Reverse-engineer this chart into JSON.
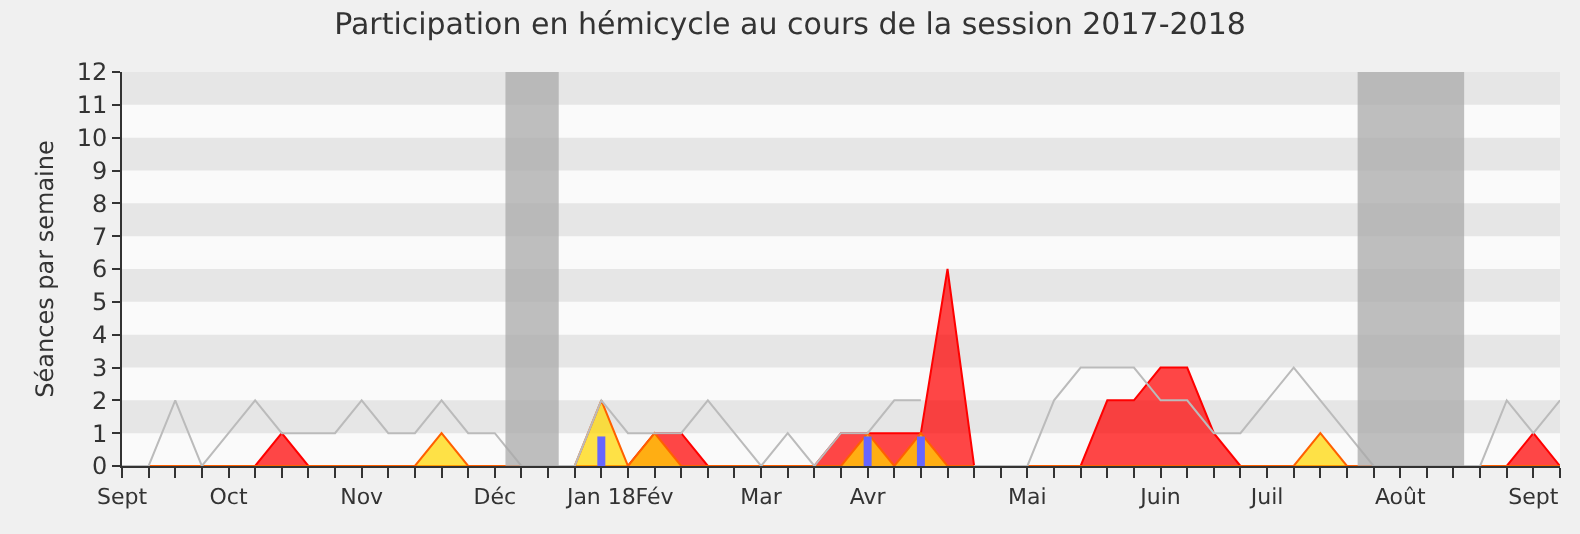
{
  "chart_data": {
    "type": "area",
    "title": "Participation en hémicycle au cours de la session 2017-2018",
    "ylabel": "Séances par semaine",
    "categories": [
      "Sept",
      null,
      null,
      null,
      "Oct",
      null,
      null,
      null,
      null,
      "Nov",
      null,
      null,
      null,
      null,
      "Déc",
      null,
      null,
      null,
      "Jan 18",
      null,
      "Fév",
      null,
      null,
      null,
      "Mar",
      null,
      null,
      null,
      "Avr",
      null,
      null,
      null,
      null,
      null,
      "Mai",
      null,
      null,
      null,
      null,
      "Juin",
      null,
      null,
      null,
      "Juil",
      null,
      null,
      null,
      null,
      "Août",
      null,
      null,
      null,
      null,
      "Sept",
      null
    ],
    "series": [
      {
        "type": "line",
        "color": "#bbbbbb",
        "values": [
          0,
          0,
          2,
          0,
          1,
          2,
          1,
          1,
          1,
          2,
          1,
          1,
          2,
          1,
          1,
          0,
          0,
          0,
          2,
          1,
          1,
          1,
          2,
          1,
          0,
          1,
          0,
          1,
          1,
          2,
          2,
          null,
          0,
          0,
          0,
          2,
          3,
          3,
          3,
          2,
          2,
          1,
          1,
          2,
          3,
          2,
          1,
          0,
          0,
          0,
          0,
          0,
          2,
          1,
          2
        ]
      },
      {
        "color": "#ff0000",
        "values": [
          0,
          0,
          0,
          0,
          0,
          0,
          1,
          0,
          0,
          0,
          0,
          0,
          0,
          0,
          0,
          0,
          0,
          0,
          0,
          0,
          1,
          1,
          0,
          0,
          0,
          0,
          0,
          1,
          1,
          1,
          1,
          6,
          0,
          0,
          0,
          0,
          0,
          2,
          2,
          3,
          3,
          1,
          0,
          0,
          0,
          0,
          0,
          0,
          0,
          0,
          0,
          0,
          0,
          1,
          0
        ]
      },
      {
        "color": "#ffd700",
        "values": [
          0,
          0,
          0,
          0,
          0,
          0,
          0,
          0,
          0,
          0,
          0,
          0,
          1,
          0,
          0,
          0,
          0,
          0,
          2,
          0,
          1,
          0,
          0,
          0,
          0,
          0,
          0,
          0,
          1,
          0,
          1,
          0,
          0,
          0,
          0,
          0,
          0,
          0,
          0,
          0,
          0,
          0,
          0,
          0,
          0,
          1,
          0,
          0,
          0,
          0,
          0,
          0,
          0,
          0,
          0
        ]
      },
      {
        "type": "bar",
        "color": "#6666ff",
        "values": [
          0,
          0,
          0,
          0,
          0,
          0,
          0,
          0,
          0,
          0,
          0,
          0,
          0,
          0,
          0,
          0,
          0,
          0,
          0.9,
          0,
          0,
          0,
          0,
          0,
          0,
          0,
          0,
          0,
          0.9,
          0,
          0.9,
          0,
          0,
          0,
          0,
          0,
          0,
          0,
          0,
          0,
          0,
          0,
          0,
          0,
          0,
          0,
          0,
          0,
          0,
          0,
          0,
          0,
          0,
          0,
          0
        ]
      }
    ],
    "ylim": [
      0,
      12
    ],
    "yticks": [
      0,
      1,
      2,
      3,
      4,
      5,
      6,
      7,
      8,
      9,
      10,
      11,
      12
    ],
    "legend": false
  }
}
